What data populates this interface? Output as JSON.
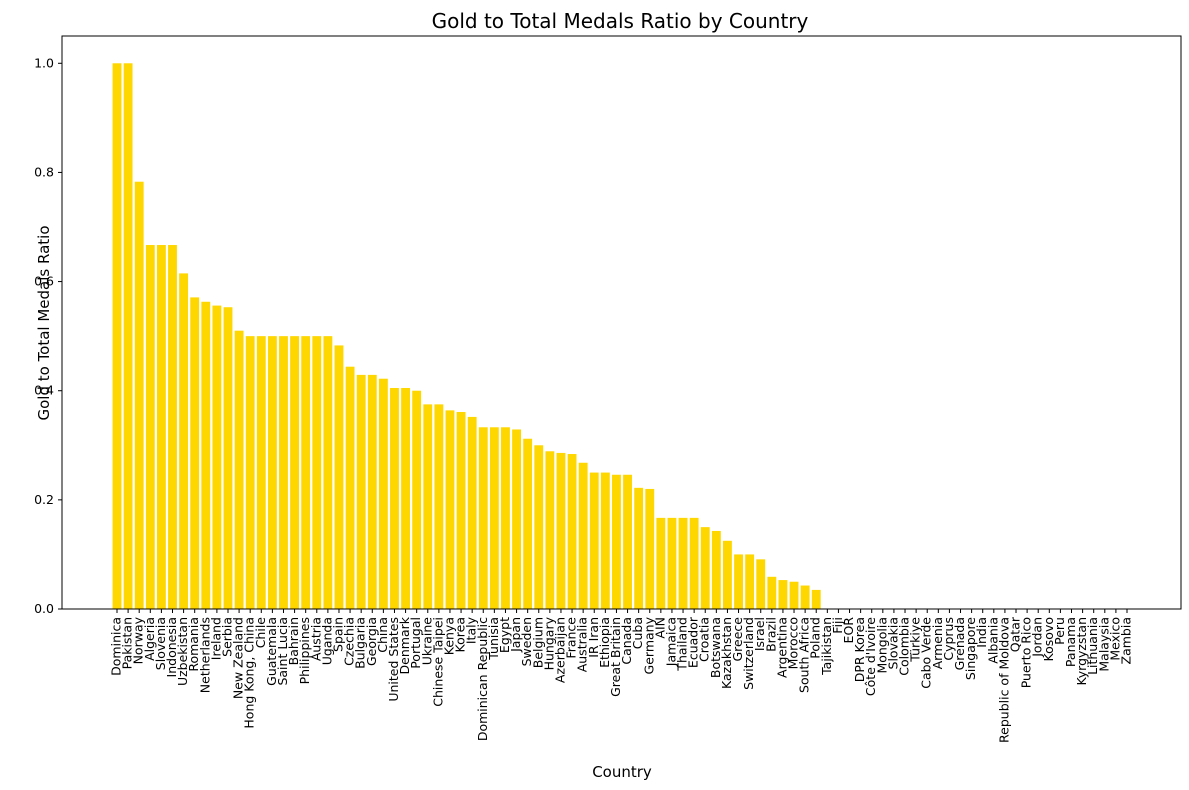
{
  "chart_data": {
    "type": "bar",
    "title": "Gold to Total Medals Ratio by Country",
    "xlabel": "Country",
    "ylabel": "Gold to Total Medals Ratio",
    "ylim": [
      0,
      1.05
    ],
    "yticks": [
      "0.0",
      "0.2",
      "0.4",
      "0.6",
      "0.8",
      "1.0"
    ],
    "grid": false,
    "bar_color": "#FFD700",
    "categories": [
      "Dominica",
      "Pakistan",
      "Norway",
      "Algeria",
      "Slovenia",
      "Indonesia",
      "Uzbekistan",
      "Romania",
      "Netherlands",
      "Ireland",
      "Serbia",
      "New Zealand",
      "Hong Kong, China",
      "Chile",
      "Guatemala",
      "Saint Lucia",
      "Bahrain",
      "Philippines",
      "Austria",
      "Uganda",
      "Spain",
      "Czechia",
      "Bulgaria",
      "Georgia",
      "China",
      "United States",
      "Denmark",
      "Portugal",
      "Ukraine",
      "Chinese Taipei",
      "Kenya",
      "Korea",
      "Italy",
      "Dominican Republic",
      "Tunisia",
      "Egypt",
      "Japan",
      "Sweden",
      "Belgium",
      "Hungary",
      "Azerbaijan",
      "France",
      "Australia",
      "IR Iran",
      "Ethiopia",
      "Great Britain",
      "Canada",
      "Cuba",
      "Germany",
      "AIN",
      "Jamaica",
      "Thailand",
      "Ecuador",
      "Croatia",
      "Botswana",
      "Kazakhstan",
      "Greece",
      "Switzerland",
      "Israel",
      "Brazil",
      "Argentina",
      "Morocco",
      "South Africa",
      "Poland",
      "Tajikistan",
      "Fiji",
      "EOR",
      "DPR Korea",
      "Côte d'Ivoire",
      "Mongolia",
      "Slovakia",
      "Colombia",
      "Türkiye",
      "Cabo Verde",
      "Armenia",
      "Cyprus",
      "Grenada",
      "Singapore",
      "India",
      "Albania",
      "Republic of Moldova",
      "Qatar",
      "Puerto Rico",
      "Jordan",
      "Kosovo",
      "Peru",
      "Panama",
      "Kyrgyzstan",
      "Lithuania",
      "Malaysia",
      "Mexico",
      "Zambia"
    ],
    "values": [
      1.0,
      1.0,
      0.783,
      0.667,
      0.667,
      0.667,
      0.615,
      0.571,
      0.563,
      0.556,
      0.553,
      0.51,
      0.5,
      0.5,
      0.5,
      0.5,
      0.5,
      0.5,
      0.5,
      0.5,
      0.483,
      0.444,
      0.429,
      0.429,
      0.422,
      0.405,
      0.405,
      0.4,
      0.375,
      0.375,
      0.364,
      0.361,
      0.352,
      0.333,
      0.333,
      0.333,
      0.329,
      0.312,
      0.3,
      0.289,
      0.286,
      0.284,
      0.268,
      0.25,
      0.25,
      0.246,
      0.246,
      0.222,
      0.22,
      0.167,
      0.167,
      0.167,
      0.167,
      0.15,
      0.143,
      0.125,
      0.1,
      0.1,
      0.091,
      0.059,
      0.053,
      0.05,
      0.043,
      0.035,
      0.0,
      0.0,
      0.0,
      0.0,
      0.0,
      0.0,
      0.0,
      0.0,
      0.0,
      0.0,
      0.0,
      0.0,
      0.0,
      0.0,
      0.0,
      0.0,
      0.0,
      0.0,
      0.0,
      0.0,
      0.0,
      0.0,
      0.0,
      0.0,
      0.0,
      0.0,
      0.0,
      0.0
    ]
  }
}
